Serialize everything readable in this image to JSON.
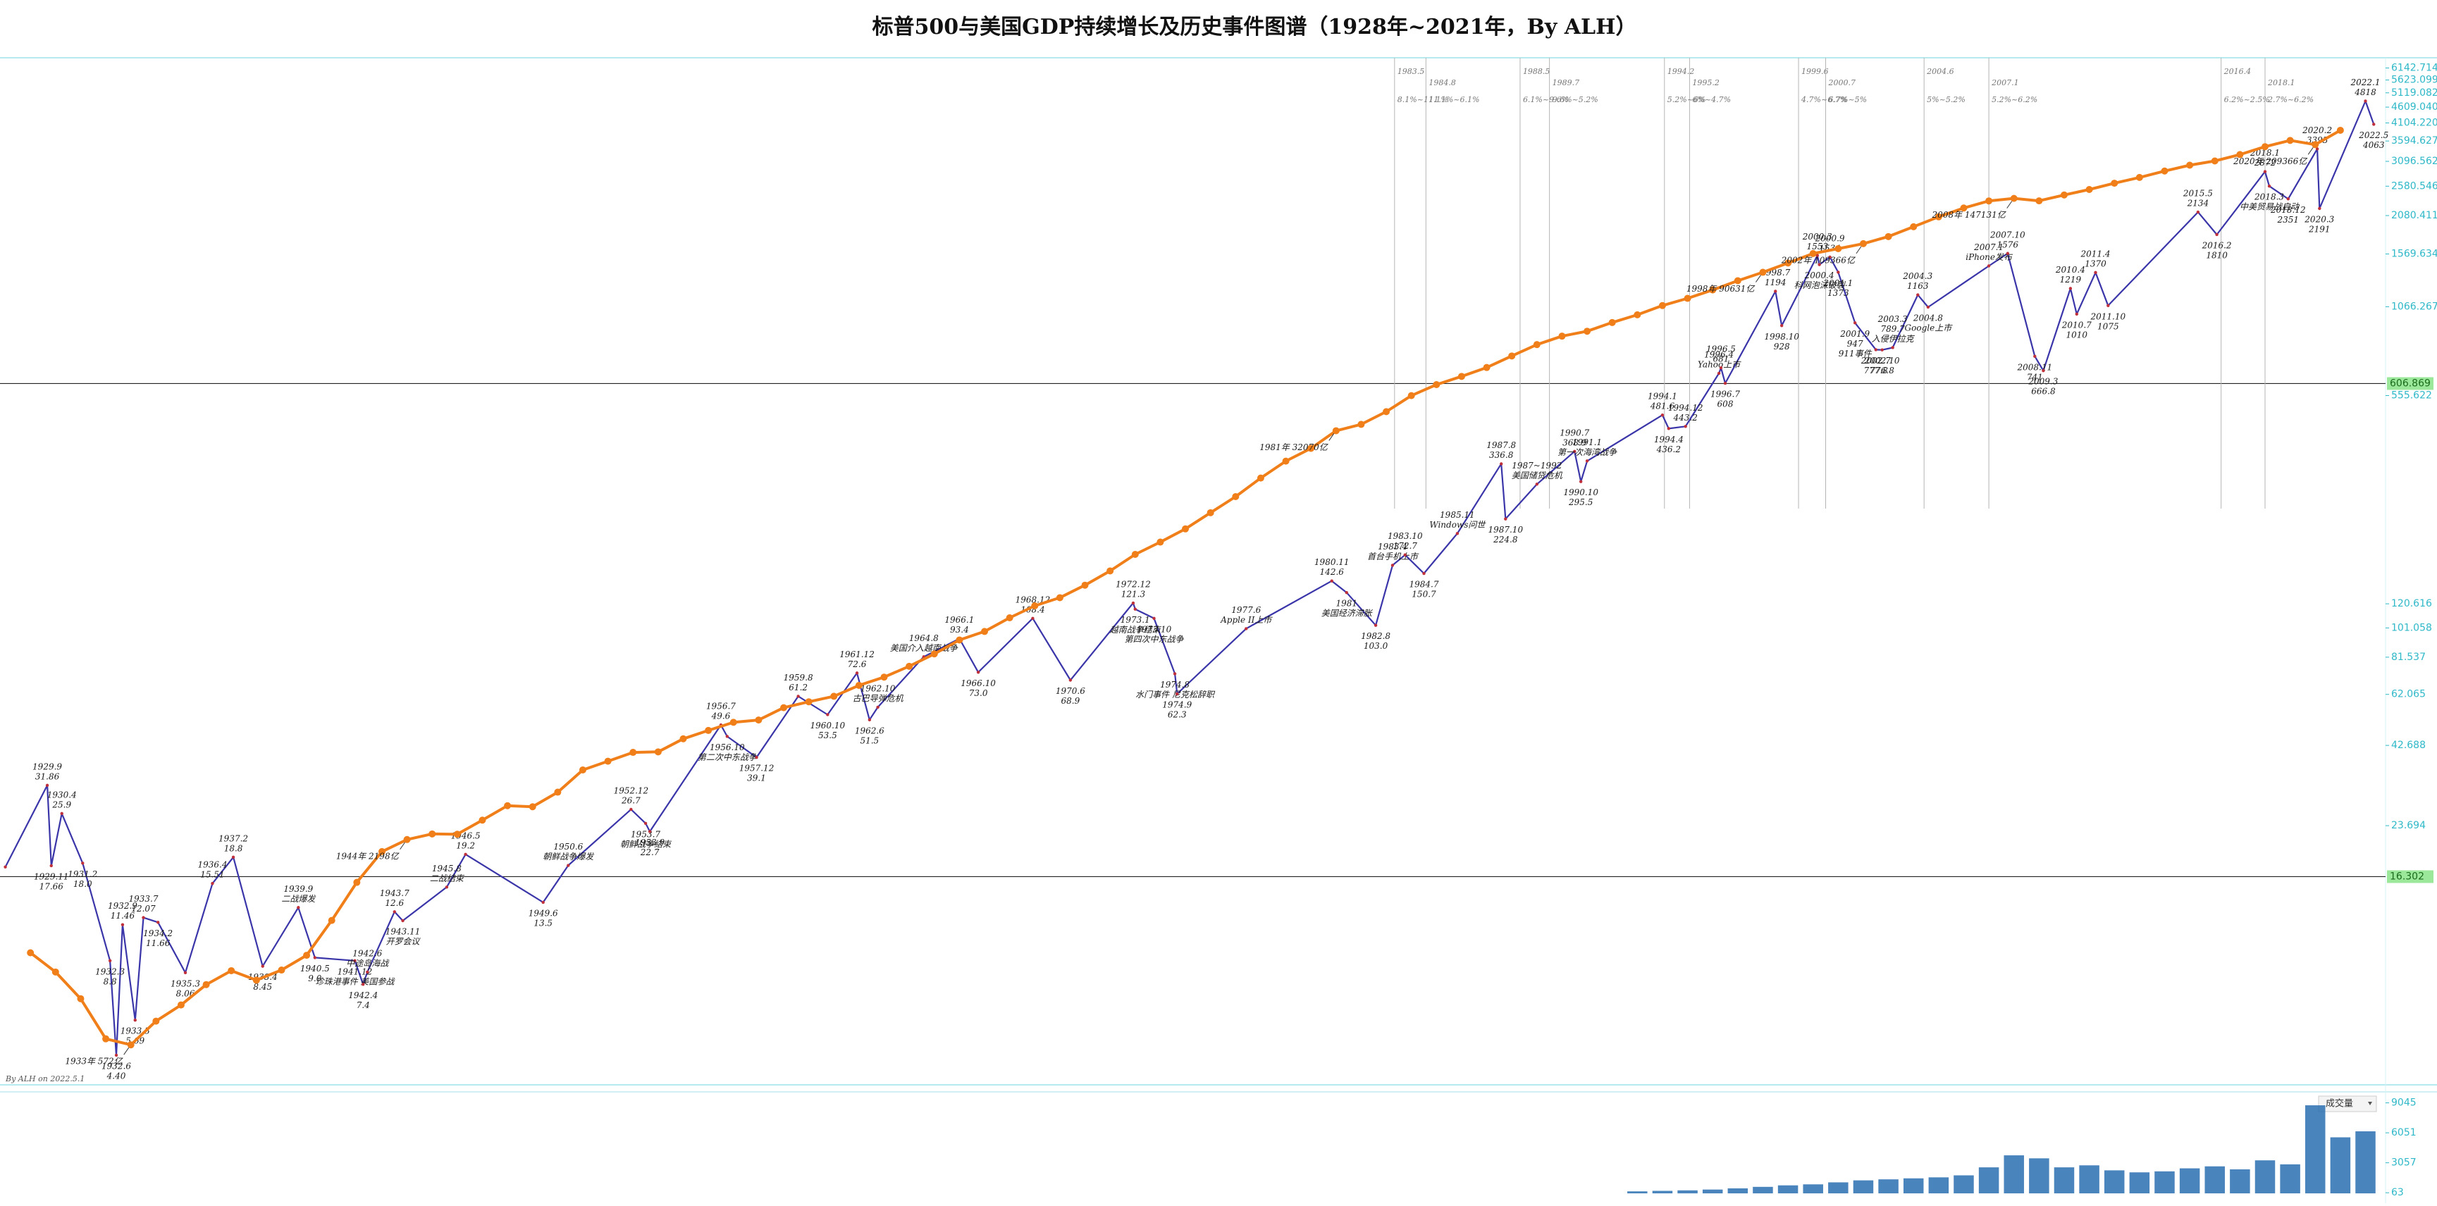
{
  "chart_data": [
    {
      "type": "line",
      "title": "标普500与美国GDP持续增长及历史事件图谱（1928年~2021年，By ALH）",
      "credit": "By ALH on 2022.5.1",
      "log_scale": true,
      "xlim": [
        1927.9,
        2022.8
      ],
      "ylim": [
        3.54,
        6620
      ],
      "yticks": [
        6142.714,
        5623.099,
        5119.082,
        {
          "value": 4609.04,
          "label": "4609.040"
        },
        {
          "value": 4104.22,
          "label": "4104.220"
        },
        3594.627,
        3096.562,
        2580.546,
        2080.411,
        1569.634,
        1066.267,
        555.622,
        120.616,
        101.058,
        81.537,
        62.065,
        42.688,
        23.694
      ],
      "y2lim": [
        440,
        370000
      ],
      "hlines": [
        606.869,
        16.302
      ],
      "vlines": [
        {
          "value": 1983.33,
          "label": "1983.5"
        },
        {
          "value": 1984.58,
          "label": "1984.8"
        },
        {
          "value": 1988.33,
          "label": "1988.5"
        },
        {
          "value": 1989.5,
          "label": "1989.7"
        },
        {
          "value": 1994.08,
          "label": "1994.2"
        },
        {
          "value": 1995.08,
          "label": "1995.2"
        },
        {
          "value": 1999.42,
          "label": "1999.6"
        },
        {
          "value": 2000.5,
          "label": "2000.7"
        },
        {
          "value": 2004.42,
          "label": "2004.6"
        },
        {
          "value": 2007.0,
          "label": "2007.1"
        },
        {
          "value": 2016.25,
          "label": "2016.4"
        },
        {
          "value": 2018.0,
          "label": "2018.1"
        }
      ],
      "period_notes": [
        "8.1%~11.1%",
        "11.1%~6.1%",
        "6.1%~9.6%",
        "9.6%~5.2%",
        "5.2%~6%",
        "6%~4.7%",
        "4.7%~6.7%",
        "6.7%~5%",
        "5%~5.2%",
        "5.2%~6.2%",
        "6.2%~2.5%",
        "2.7%~6.2%"
      ],
      "series": [
        {
          "color": "#3a35a8",
          "x": [
            1928.0,
            1929.67,
            1929.83,
            1930.25,
            1931.08,
            1932.17,
            1932.42,
            1932.67,
            1933.17,
            1933.5,
            1934.08,
            1935.17,
            1936.25,
            1937.08,
            1938.25,
            1939.67,
            1940.33,
            1941.92,
            1942.25,
            1942.42,
            1943.5,
            1943.83,
            1945.58,
            1946.33,
            1949.42,
            1950.42,
            1952.92,
            1953.5,
            1953.67,
            1956.5,
            1956.75,
            1957.92,
            1959.58,
            1960.75,
            1961.92,
            1962.42,
            1962.75,
            1964.58,
            1966.0,
            1966.75,
            1968.92,
            1970.42,
            1972.92,
            1973.0,
            1973.75,
            1974.58,
            1974.67,
            1977.42,
            1980.83,
            1981.42,
            1982.58,
            1983.25,
            1983.75,
            1984.5,
            1985.83,
            1987.58,
            1987.75,
            1989.0,
            1990.5,
            1990.75,
            1991.0,
            1994.0,
            1994.25,
            1994.92,
            1996.25,
            1996.33,
            1996.5,
            1998.5,
            1998.75,
            2000.17,
            2000.25,
            2000.67,
            2001.0,
            2001.67,
            2002.5,
            2002.75,
            2003.17,
            2004.17,
            2004.58,
            2007.0,
            2007.75,
            2008.83,
            2009.17,
            2010.25,
            2010.5,
            2011.25,
            2011.75,
            2015.33,
            2016.08,
            2018.0,
            2018.17,
            2018.92,
            2020.08,
            2020.17,
            2022.0,
            2022.33
          ],
          "values": [
            17.5,
            31.86,
            17.66,
            25.9,
            18,
            8.8,
            4.4,
            11.46,
            5.69,
            12.07,
            11.66,
            8.06,
            15.51,
            18.8,
            8.45,
            13,
            9,
            8.8,
            7.4,
            8.1,
            12.6,
            11.8,
            15.1,
            19.2,
            13.5,
            17.7,
            26.7,
            24.1,
            22.7,
            49.6,
            45.6,
            39.1,
            61.2,
            53.5,
            72.6,
            51.5,
            56.5,
            81.8,
            93.4,
            73,
            108.4,
            68.9,
            121.3,
            116,
            108.4,
            72.2,
            62.3,
            100.5,
            142.6,
            131,
            103,
            160,
            172.7,
            150.7,
            202,
            336.8,
            224.8,
            290,
            368.9,
            295.5,
            343.9,
            481.6,
            436.2,
            443.2,
            654,
            681,
            608,
            1194,
            928,
            1553,
            1452,
            1534,
            1373,
            947,
            777.8,
            776.8,
            789.7,
            1163,
            1063,
            1438,
            1576,
            741,
            666.8,
            1219,
            1010,
            1370,
            1075,
            2134,
            1810,
            2872,
            2582,
            2351,
            3393,
            2191,
            4818,
            4063
          ],
          "dates": [
            null,
            "1929.9",
            "1929.11",
            "1930.4",
            "1931.2",
            "1932.3",
            "1932.6",
            "1932.9",
            "1933.3",
            "1933.7",
            "1934.2",
            "1935.3",
            "1936.4",
            "1937.2",
            "1938.4",
            "1939.9",
            "1940.5",
            "1941.12",
            "1942.4",
            "1942.6",
            "1943.7",
            "1943.11",
            "1945.8",
            "1946.5",
            "1949.6",
            "1950.6",
            "1952.12",
            "1953.7",
            "1953.9",
            "1956.7",
            "1956.10",
            "1957.12",
            "1959.8",
            "1960.10",
            "1961.12",
            "1962.6",
            "1962.10",
            "1964.8",
            "1966.1",
            "1966.10",
            "1968.12",
            "1970.6",
            "1972.12",
            "1973.1",
            "1973.10",
            "1974.8",
            "1974.9",
            "1977.6",
            "1980.11",
            "1981",
            "1982.8",
            "1983.4",
            "1983.10",
            "1984.7",
            "1985.11",
            "1987.8",
            "1987.10",
            "1987~1992",
            "1990.7",
            "1990.10",
            "1991.1",
            "1994.1",
            "1994.4",
            "1994.12",
            "1996.4",
            "1996.5",
            "1996.7",
            "1998.7",
            "1998.10",
            "2000.3",
            "2000.4",
            "2000.9",
            "2001.1",
            "2001.9",
            "2002.7",
            "2002.10",
            "2003.3",
            "2004.3",
            "2004.8",
            "2007.1",
            "2007.10",
            "2008.11",
            "2009.3",
            "2010.4",
            "2010.7",
            "2011.4",
            "2011.10",
            "2015.5",
            "2016.2",
            "2018.1",
            "2018.3",
            "2018.12",
            "2020.2",
            "2020.3",
            "2022.1",
            "2022.5"
          ],
          "value_labels": [
            null,
            "31.86",
            "17.66",
            "25.9",
            "18.0",
            "8.8",
            "4.40",
            "11.46",
            "5.69",
            "12.07",
            "11.66",
            "8.06",
            "15.51",
            "18.8",
            "8.45",
            null,
            "9.0",
            null,
            "7.4",
            null,
            "12.6",
            null,
            null,
            "19.2",
            "13.5",
            null,
            "26.7",
            null,
            "22.7",
            "49.6",
            null,
            "39.1",
            "61.2",
            "53.5",
            "72.6",
            "51.5",
            null,
            null,
            "93.4",
            "73.0",
            "108.4",
            "68.9",
            "121.3",
            null,
            null,
            null,
            "62.3",
            null,
            "142.6",
            null,
            "103.0",
            null,
            "172.7",
            "150.7",
            null,
            "336.8",
            "224.8",
            null,
            "368.9",
            "295.5",
            null,
            "481.6",
            "436.2",
            "443.2",
            null,
            "681",
            "608",
            "1194",
            "928",
            "1553",
            null,
            "1534",
            "1373",
            "947",
            "777.8",
            "776.8",
            "789.7",
            "1163",
            null,
            null,
            "1576",
            "741",
            "666.8",
            "1219",
            "1010",
            "1370",
            "1075",
            "2134",
            "1810",
            "2872",
            null,
            "2351",
            "3393",
            "2191",
            "4818",
            "4063"
          ],
          "events": [
            null,
            null,
            null,
            null,
            null,
            null,
            null,
            null,
            null,
            null,
            null,
            null,
            null,
            null,
            null,
            "二战爆发",
            null,
            "珍珠港事件 美国参战",
            null,
            "中途岛海战",
            null,
            "开罗会议",
            "二战结束",
            null,
            null,
            "朝鲜战争爆发",
            null,
            "朝鲜战争结束",
            null,
            null,
            "第二次中东战争",
            null,
            null,
            null,
            null,
            null,
            "古巴导弹危机",
            "美国介入越南战争",
            null,
            null,
            null,
            null,
            null,
            "越南战争结束",
            "第四次中东战争",
            "水门事件 尼克松辞职",
            null,
            "Apple II上市",
            null,
            "美国经济滞胀",
            null,
            "首台手机上市",
            null,
            null,
            "Windows问世",
            null,
            null,
            "美国储贷危机",
            null,
            null,
            "第一次海湾战争",
            null,
            null,
            null,
            "Yahoo上市",
            null,
            null,
            null,
            null,
            null,
            "科网泡沫破裂",
            null,
            null,
            "911事件",
            null,
            null,
            "入侵伊拉克",
            null,
            "Google上市",
            "iPhone发布",
            null,
            null,
            null,
            null,
            null,
            null,
            null,
            null,
            null,
            null,
            "中美贸易战启动",
            null,
            null,
            null,
            null,
            null
          ]
        },
        {
          "color": "#f07f1a",
          "axis": "y2",
          "x": [
            1929,
            1930,
            1931,
            1932,
            1933,
            1934,
            1935,
            1936,
            1937,
            1938,
            1939,
            1940,
            1941,
            1942,
            1943,
            1944,
            1945,
            1946,
            1947,
            1948,
            1949,
            1950,
            1951,
            1952,
            1953,
            1954,
            1955,
            1956,
            1957,
            1958,
            1959,
            1960,
            1961,
            1962,
            1963,
            1964,
            1965,
            1966,
            1967,
            1968,
            1969,
            1970,
            1971,
            1972,
            1973,
            1974,
            1975,
            1976,
            1977,
            1978,
            1979,
            1980,
            1981,
            1982,
            1983,
            1984,
            1985,
            1986,
            1987,
            1988,
            1989,
            1990,
            1991,
            1992,
            1993,
            1994,
            1995,
            1996,
            1997,
            1998,
            1999,
            2000,
            2001,
            2002,
            2003,
            2004,
            2005,
            2006,
            2007,
            2008,
            2009,
            2010,
            2011,
            2012,
            2013,
            2014,
            2015,
            2016,
            2017,
            2018,
            2019,
            2020,
            2021
          ],
          "values": [
            1046,
            922,
            774,
            595,
            572,
            668,
            743,
            849,
            930,
            874,
            934,
            1029,
            1293,
            1660,
            2031,
            2198,
            2280,
            2275,
            2496,
            2744,
            2725,
            2998,
            3469,
            3673,
            3892,
            3905,
            4255,
            4494,
            4740,
            4812,
            5217,
            5424,
            5622,
            6039,
            6375,
            6845,
            7423,
            8134,
            8600,
            9407,
            10176,
            10733,
            11649,
            12791,
            14254,
            15452,
            16849,
            18734,
            20818,
            23516,
            26273,
            28573,
            32070,
            33438,
            36340,
            40376,
            43390,
            45796,
            48552,
            52364,
            56416,
            59631,
            61581,
            65203,
            68586,
            72872,
            76397,
            80731,
            85776,
            90631,
            96312,
            102510,
            105819,
            109366,
            114565,
            122172,
            130392,
            138156,
            144742,
            147131,
            144781,
            150490,
            155997,
            162540,
            168807,
            176081,
            182950,
            188049,
            196121,
            206565,
            215214,
            209366,
            229960
          ],
          "value_labels": [
            null,
            null,
            null,
            null,
            "1933年 572亿",
            null,
            null,
            null,
            null,
            null,
            null,
            null,
            null,
            null,
            null,
            "1944年 2198亿",
            null,
            null,
            null,
            null,
            null,
            null,
            null,
            null,
            null,
            null,
            null,
            null,
            null,
            null,
            null,
            null,
            null,
            null,
            null,
            null,
            null,
            null,
            null,
            null,
            null,
            null,
            null,
            null,
            null,
            null,
            null,
            null,
            null,
            null,
            null,
            null,
            "1981年 32070亿",
            null,
            null,
            null,
            null,
            null,
            null,
            null,
            null,
            null,
            null,
            null,
            null,
            null,
            null,
            null,
            null,
            "1998年 90631亿",
            null,
            null,
            null,
            "2002年 109366亿",
            null,
            null,
            null,
            null,
            null,
            "2008年 147131亿",
            null,
            null,
            null,
            null,
            null,
            null,
            null,
            null,
            null,
            null,
            null,
            "2020年 209366亿",
            null
          ]
        }
      ]
    },
    {
      "type": "bar",
      "title": "成交量",
      "xlim": [
        1927.9,
        2022.8
      ],
      "ylim": [
        -700,
        10000
      ],
      "yticks": [
        9045,
        6051,
        3057,
        63
      ],
      "color": "#2a6fb0",
      "x": [
        1993,
        1994,
        1995,
        1996,
        1997,
        1998,
        1999,
        2000,
        2001,
        2002,
        2003,
        2004,
        2005,
        2006,
        2007,
        2008,
        2009,
        2010,
        2011,
        2012,
        2013,
        2014,
        2015,
        2016,
        2017,
        2018,
        2019,
        2020,
        2021,
        2022
      ],
      "values": [
        200,
        250,
        300,
        380,
        500,
        650,
        800,
        900,
        1100,
        1300,
        1400,
        1500,
        1600,
        1800,
        2600,
        3800,
        3500,
        2600,
        2800,
        2300,
        2100,
        2200,
        2500,
        2700,
        2400,
        3300,
        2900,
        8800,
        5600,
        6200
      ]
    }
  ]
}
